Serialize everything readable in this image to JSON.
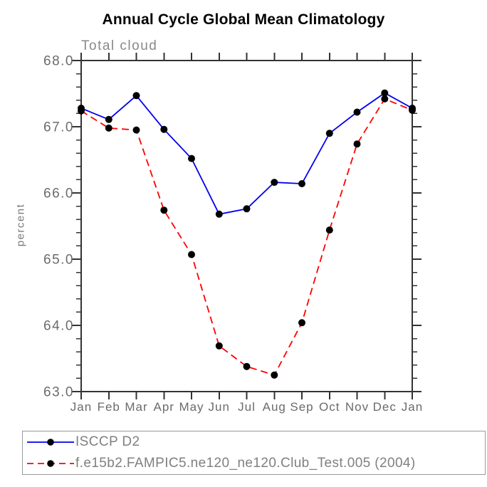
{
  "title": "Annual Cycle Global Mean Climatology",
  "chart_data": {
    "type": "line",
    "title": "Annual Cycle Global Mean Climatology",
    "subtitle": "Total cloud",
    "ylabel": "percent",
    "categories": [
      "Jan",
      "Feb",
      "Mar",
      "Apr",
      "May",
      "Jun",
      "Jul",
      "Aug",
      "Sep",
      "Oct",
      "Nov",
      "Dec",
      "Jan"
    ],
    "ylim": [
      63.0,
      68.0
    ],
    "ytick_interval_major": 1.0,
    "ytick_interval_minor": 0.2,
    "ytick_labels": [
      "63.0",
      "64.0",
      "65.0",
      "66.0",
      "67.0",
      "68.0"
    ],
    "grid": false,
    "legend_position": "bottom-left-box",
    "series": [
      {
        "name": "ISCCP D2",
        "color": "#0000ee",
        "line_style": "solid",
        "marker": "filled-circle",
        "marker_color": "#000000",
        "values": [
          67.28,
          67.11,
          67.47,
          66.96,
          66.52,
          65.68,
          65.76,
          66.16,
          66.14,
          66.9,
          67.22,
          67.51,
          67.28
        ]
      },
      {
        "name": "f.e15b2.FAMPIC5.ne120_ne120.Club_Test.005 (2004)",
        "color": "#ff0000",
        "line_style": "dashed",
        "marker": "filled-circle",
        "marker_color": "#000000",
        "values": [
          67.24,
          66.98,
          66.95,
          65.74,
          65.07,
          63.69,
          63.38,
          63.25,
          64.04,
          65.44,
          66.74,
          67.42,
          67.25
        ]
      }
    ]
  },
  "colors": {
    "background": "#ffffff",
    "title": "#000000",
    "subtitle": "#898989",
    "axis": "#333333",
    "tick_label": "#6b6b6b",
    "axis_title": "#7a7a7a",
    "legend_text": "#808080",
    "legend_border": "#9a9a9a",
    "series_observed": "#0000ee",
    "series_model": "#ff0000",
    "marker": "#000000"
  }
}
